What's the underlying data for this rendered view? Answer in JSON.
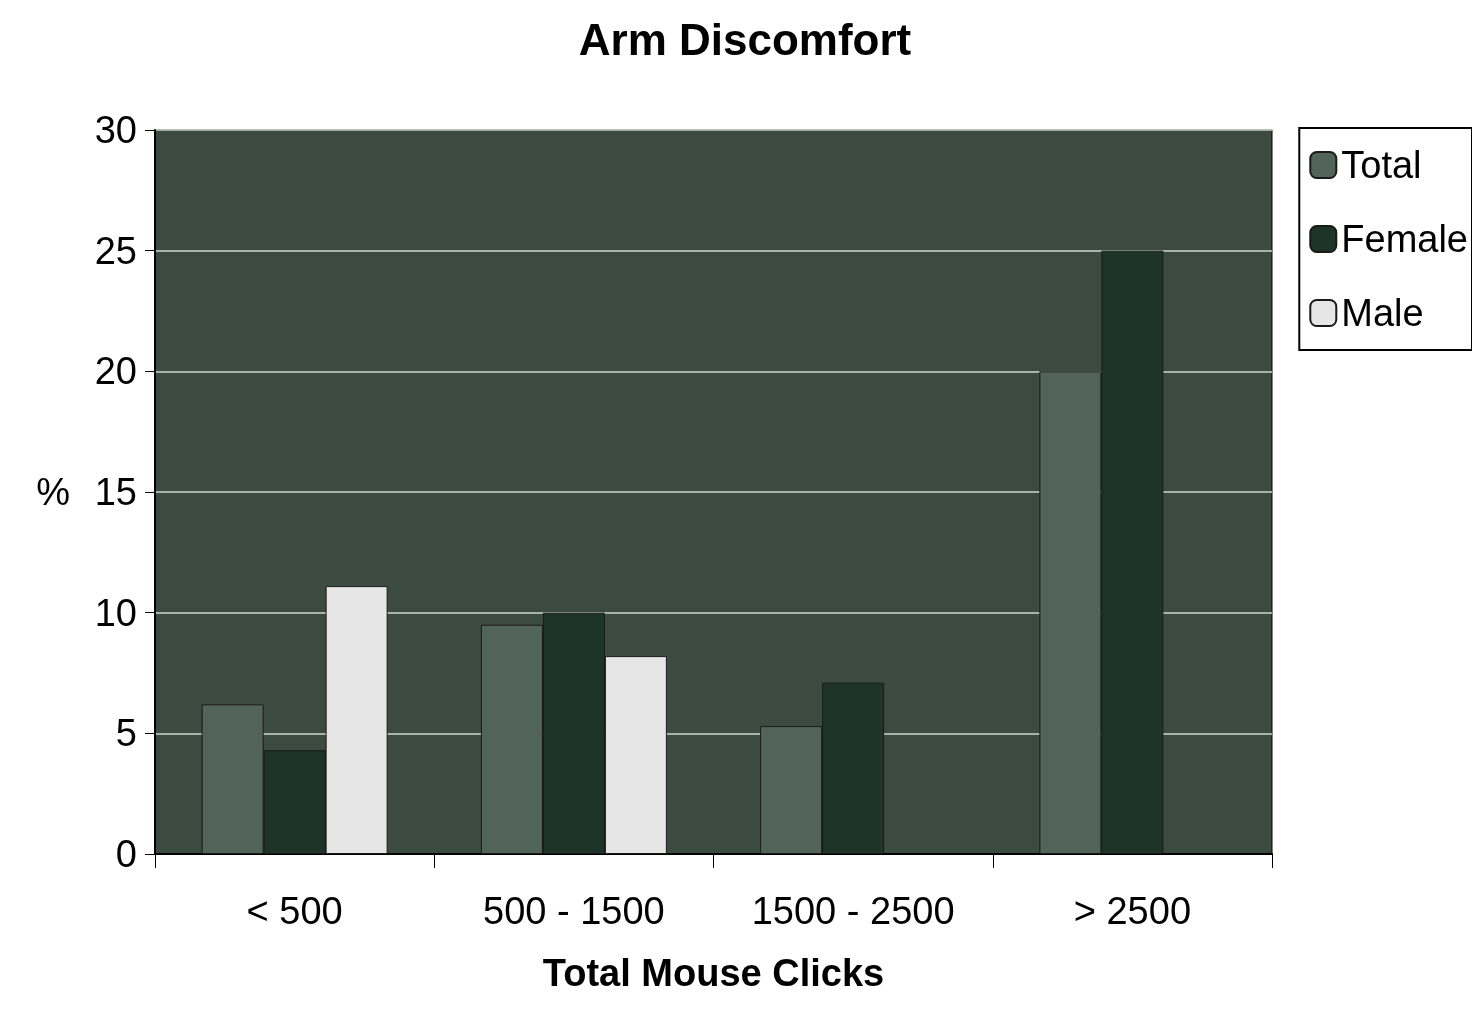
{
  "chart_data": {
    "type": "bar",
    "title": "Arm Discomfort",
    "xlabel": "Total Mouse Clicks",
    "ylabel": "%",
    "categories": [
      "< 500",
      "500 - 1500",
      "1500 - 2500",
      "> 2500"
    ],
    "series": [
      {
        "name": "Total",
        "color": "#52645a",
        "values": [
          6.2,
          9.5,
          5.3,
          20
        ]
      },
      {
        "name": "Female",
        "color": "#1f3429",
        "values": [
          4.3,
          10,
          7.1,
          25
        ]
      },
      {
        "name": "Male",
        "color": "#e6e6e6",
        "values": [
          11.1,
          8.2,
          null,
          null
        ]
      }
    ],
    "ylim": [
      0,
      30
    ],
    "yticks": [
      0,
      5,
      10,
      15,
      20,
      25,
      30
    ],
    "grid": "y",
    "legend": "top right"
  }
}
